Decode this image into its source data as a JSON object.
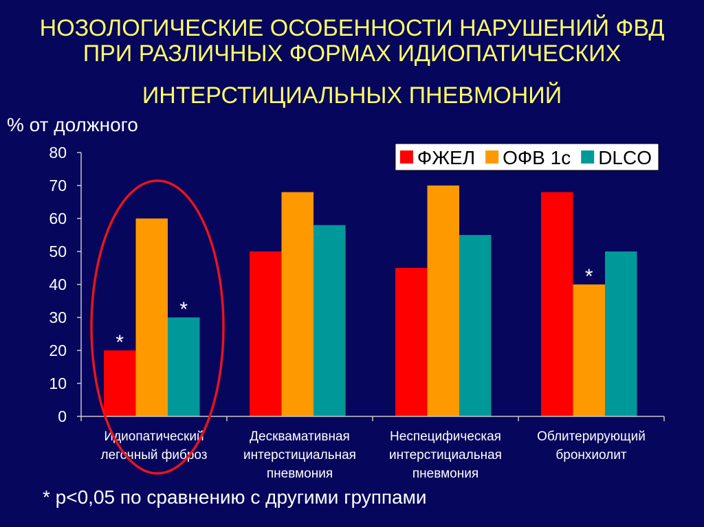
{
  "slide": {
    "title_lines": [
      "НОЗОЛОГИЧЕСКИЕ ОСОБЕННОСТИ НАРУШЕНИЙ ФВД",
      "ПРИ РАЗЛИЧНЫХ ФОРМАХ ИДИОПАТИЧЕСКИХ",
      "ИНТЕРСТИЦИАЛЬНЫХ ПНЕВМОНИЙ"
    ],
    "footnote": "* p<0,05 по сравнению с другими группами"
  },
  "colors": {
    "background": "#06065c",
    "title": "#ffff66",
    "text": "#ffffff",
    "axis": "#c8c8c8",
    "highlight": "#e8141c"
  },
  "chart_data": {
    "type": "bar",
    "ylabel": "% от должного",
    "ylim": [
      0,
      80
    ],
    "yticks": [
      0,
      10,
      20,
      30,
      40,
      50,
      60,
      70,
      80
    ],
    "grid": false,
    "legend": "top-right",
    "categories": [
      [
        "Идиопатический",
        "легочный фиброз"
      ],
      [
        "Десквамативная",
        "интерстициальная",
        "пневмония"
      ],
      [
        "Неспецифическая",
        "интерстициальная",
        "пневмония"
      ],
      [
        "Облитерирующий",
        "бронхиолит"
      ]
    ],
    "series": [
      {
        "name": "ФЖЕЛ",
        "color": "#ff0000",
        "values": [
          20,
          50,
          45,
          68
        ]
      },
      {
        "name": "ОФВ 1с",
        "color": "#ff9900",
        "values": [
          60,
          68,
          70,
          40
        ]
      },
      {
        "name": "DLCO",
        "color": "#009999",
        "values": [
          30,
          58,
          55,
          50
        ]
      }
    ],
    "annotations": [
      {
        "category_index": 0,
        "series_index": 0,
        "text": "*"
      },
      {
        "category_index": 0,
        "series_index": 2,
        "text": "*"
      },
      {
        "category_index": 3,
        "series_index": 1,
        "text": "*"
      }
    ],
    "highlight": {
      "category_index": 0
    }
  }
}
